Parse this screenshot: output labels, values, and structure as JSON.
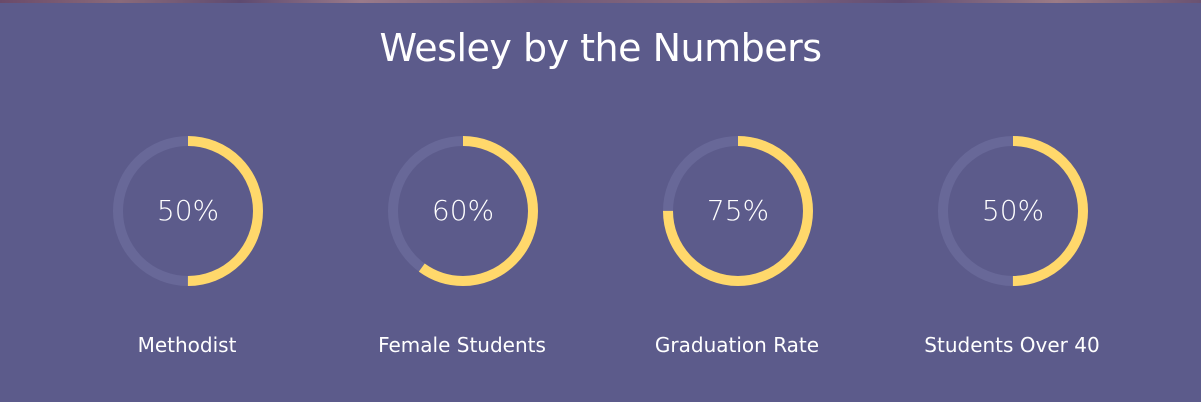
{
  "header": {
    "title": "Wesley by the Numbers"
  },
  "colors": {
    "background": "#5c5b8b",
    "ring_track": "#686898",
    "ring_fill": "#ffd86b",
    "text": "#ffffff"
  },
  "stats": [
    {
      "value": "50%",
      "percent": 50,
      "label": "Methodist"
    },
    {
      "value": "60%",
      "percent": 60,
      "label": "Female Students"
    },
    {
      "value": "75%",
      "percent": 75,
      "label": "Graduation Rate"
    },
    {
      "value": "50%",
      "percent": 50,
      "label": "Students Over 40"
    }
  ]
}
